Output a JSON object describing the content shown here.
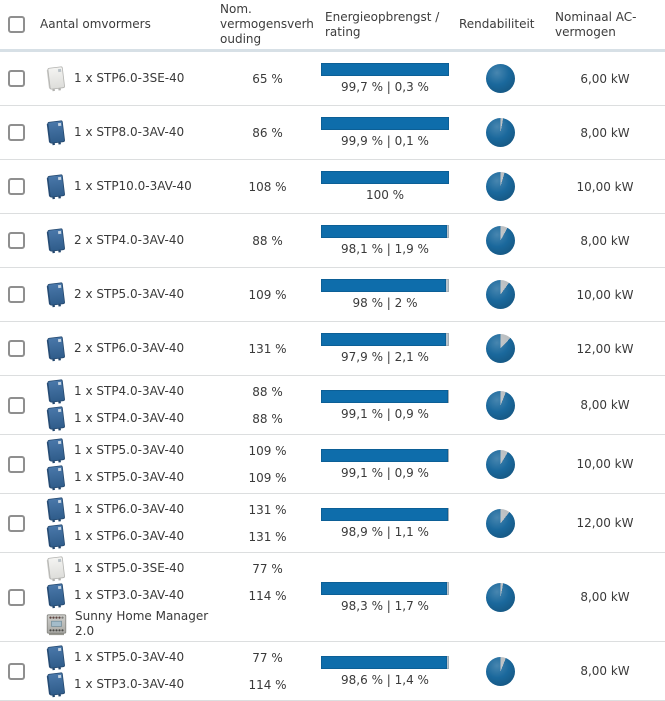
{
  "table": {
    "columns": {
      "devices": "Aantal omvormers",
      "ratio": "Nom. vermogensverhouding",
      "energy": "Energieopbrengst / rating",
      "profitability": "Rendabiliteit",
      "ac_power": "Nominaal AC-vermogen"
    },
    "colors": {
      "bar_blue": "#0e6dab",
      "bar_rest": "#b9c4cc",
      "pie_blue": "#1a689c",
      "pie_wedge": "#b9bdc0"
    },
    "icon_legend": {
      "inverter-av": "blue Sunny Tripower AV inverter icon",
      "inverter-se": "white Sunny Tripower Smart Energy inverter icon",
      "home-manager": "Sunny Home Manager DIN-rail device icon"
    },
    "rows": [
      {
        "devices": [
          {
            "icon": "inverter-se",
            "label": "1 x STP6.0-3SE-40",
            "ratio": "65 %"
          }
        ],
        "energy_label": "99,7 % | 0,3 %",
        "yield_pct": 99.7,
        "loss_pct": 0.3,
        "pie_wedge_pct": 0,
        "ac_power": "6,00 kW"
      },
      {
        "devices": [
          {
            "icon": "inverter-av",
            "label": "1 x STP8.0-3AV-40",
            "ratio": "86 %"
          }
        ],
        "energy_label": "99,9 % | 0,1 %",
        "yield_pct": 99.9,
        "loss_pct": 0.1,
        "pie_wedge_pct": 3,
        "ac_power": "8,00 kW"
      },
      {
        "devices": [
          {
            "icon": "inverter-av",
            "label": "1 x STP10.0-3AV-40",
            "ratio": "108 %"
          }
        ],
        "energy_label": "100 %",
        "yield_pct": 100,
        "loss_pct": 0,
        "pie_wedge_pct": 4.5,
        "ac_power": "10,00 kW"
      },
      {
        "devices": [
          {
            "icon": "inverter-av",
            "label": "2 x STP4.0-3AV-40",
            "ratio": "88 %"
          }
        ],
        "energy_label": "98,1 % | 1,9 %",
        "yield_pct": 98.1,
        "loss_pct": 1.9,
        "pie_wedge_pct": 8,
        "ac_power": "8,00 kW"
      },
      {
        "devices": [
          {
            "icon": "inverter-av",
            "label": "2 x STP5.0-3AV-40",
            "ratio": "109 %"
          }
        ],
        "energy_label": "98 % | 2 %",
        "yield_pct": 98,
        "loss_pct": 2,
        "pie_wedge_pct": 10,
        "ac_power": "10,00 kW"
      },
      {
        "devices": [
          {
            "icon": "inverter-av",
            "label": "2 x STP6.0-3AV-40",
            "ratio": "131 %"
          }
        ],
        "energy_label": "97,9 % | 2,1 %",
        "yield_pct": 97.9,
        "loss_pct": 2.1,
        "pie_wedge_pct": 12,
        "ac_power": "12,00 kW"
      },
      {
        "devices": [
          {
            "icon": "inverter-av",
            "label": "1 x STP4.0-3AV-40",
            "ratio": "88 %"
          },
          {
            "icon": "inverter-av",
            "label": "1 x STP4.0-3AV-40",
            "ratio": "88 %"
          }
        ],
        "energy_label": "99,1 % | 0,9 %",
        "yield_pct": 99.1,
        "loss_pct": 0.9,
        "pie_wedge_pct": 6,
        "ac_power": "8,00 kW"
      },
      {
        "devices": [
          {
            "icon": "inverter-av",
            "label": "1 x STP5.0-3AV-40",
            "ratio": "109 %"
          },
          {
            "icon": "inverter-av",
            "label": "1 x STP5.0-3AV-40",
            "ratio": "109 %"
          }
        ],
        "energy_label": "99,1 % | 0,9 %",
        "yield_pct": 99.1,
        "loss_pct": 0.9,
        "pie_wedge_pct": 8.5,
        "ac_power": "10,00 kW"
      },
      {
        "devices": [
          {
            "icon": "inverter-av",
            "label": "1 x STP6.0-3AV-40",
            "ratio": "131 %"
          },
          {
            "icon": "inverter-av",
            "label": "1 x STP6.0-3AV-40",
            "ratio": "131 %"
          }
        ],
        "energy_label": "98,9 % | 1,1 %",
        "yield_pct": 98.9,
        "loss_pct": 1.1,
        "pie_wedge_pct": 10.5,
        "ac_power": "12,00 kW"
      },
      {
        "devices": [
          {
            "icon": "inverter-se",
            "label": "1 x STP5.0-3SE-40",
            "ratio": "77 %"
          },
          {
            "icon": "inverter-av",
            "label": "1 x STP3.0-3AV-40",
            "ratio": "114 %"
          },
          {
            "icon": "home-manager",
            "label": "Sunny Home Manager 2.0",
            "ratio": ""
          }
        ],
        "energy_label": "98,3 % | 1,7 %",
        "yield_pct": 98.3,
        "loss_pct": 1.7,
        "pie_wedge_pct": 3,
        "ac_power": "8,00 kW"
      },
      {
        "devices": [
          {
            "icon": "inverter-av",
            "label": "1 x STP5.0-3AV-40",
            "ratio": "77 %"
          },
          {
            "icon": "inverter-av",
            "label": "1 x STP3.0-3AV-40",
            "ratio": "114 %"
          }
        ],
        "energy_label": "98,6 % | 1,4 %",
        "yield_pct": 98.6,
        "loss_pct": 1.4,
        "pie_wedge_pct": 6,
        "ac_power": "8,00 kW"
      }
    ]
  }
}
